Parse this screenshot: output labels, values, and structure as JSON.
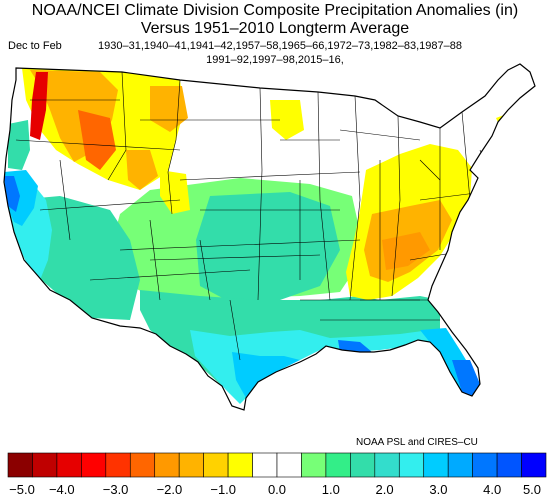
{
  "title": {
    "line1": "NOAA/NCEI Climate Division Composite Precipitation Anomalies (in)",
    "line2": "Versus 1951–2010 Longterm Average",
    "season": "Dec to Feb",
    "years_line1": "1930–31,1940–41,1941–42,1957–58,1965–66,1972–73,1982–83,1987–88",
    "years_line2": "1991–92,1997–98,2015–16,"
  },
  "credit": "NOAA PSL and CIRES–CU",
  "colorbar": {
    "colors": [
      "#8b0000",
      "#bf0000",
      "#e60000",
      "#ff0000",
      "#ff3300",
      "#ff6600",
      "#ff9900",
      "#ffb300",
      "#ffd200",
      "#ffff00",
      "#ffffff",
      "#ffffff",
      "#77ff77",
      "#33ee88",
      "#33ddaa",
      "#33ddcc",
      "#33eeee",
      "#00ccff",
      "#00aaff",
      "#0077ff",
      "#0055ff",
      "#0000ff"
    ],
    "tick_labels": [
      "−5.0",
      "−4.0",
      "−3.0",
      "−2.0",
      "−1.0",
      "0.0",
      "1.0",
      "2.0",
      "3.0",
      "4.0",
      "5.0"
    ]
  },
  "map_regions": {
    "dry_core": "#ff6600",
    "dry": "#ffb300",
    "dry_light": "#ffff00",
    "neutral": "#ffffff",
    "wet_light": "#77ff77",
    "wet": "#33ddaa",
    "wet_more": "#33eeee",
    "wet_strong": "#00ccff",
    "wet_max": "#0077ff",
    "very_dry": "#e60000"
  }
}
